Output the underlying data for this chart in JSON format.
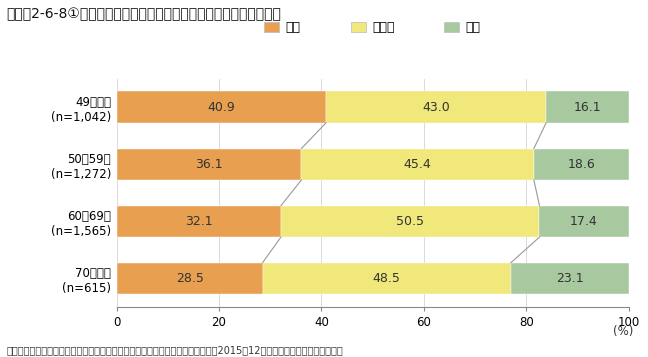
{
  "title": "コラム2-6-8①図　経営者の年齢別に見た今後の売上高推移の見込み",
  "categories": [
    "49歳以下\n(n=1,042)",
    "50～59歳\n(n=1,272)",
    "60～69歳\n(n=1,565)",
    "70歳以上\n(n=615)"
  ],
  "series": {
    "増加": [
      40.9,
      36.1,
      32.1,
      28.5
    ],
    "横ばい": [
      43.0,
      45.4,
      50.5,
      48.5
    ],
    "減少": [
      16.1,
      18.6,
      17.4,
      23.1
    ]
  },
  "colors": {
    "増加": "#E8A050",
    "横ばい": "#F0E87A",
    "減少": "#A8C8A0"
  },
  "xlim": [
    0,
    100
  ],
  "xticks": [
    0,
    20,
    40,
    60,
    80,
    100
  ],
  "footnote": "資料：中小企業庁委託「中小企業の成長と投資行動に関するアンケート調査」（2015年12月、（株）帝国データバンク）",
  "legend_order": [
    "増加",
    "横ばい",
    "減少"
  ],
  "bar_height": 0.55,
  "background_color": "#ffffff",
  "grid_color": "#cccccc",
  "line_color": "#999999",
  "title_fontsize": 10,
  "label_fontsize": 8.5,
  "value_fontsize": 9,
  "legend_fontsize": 9,
  "footnote_fontsize": 7
}
